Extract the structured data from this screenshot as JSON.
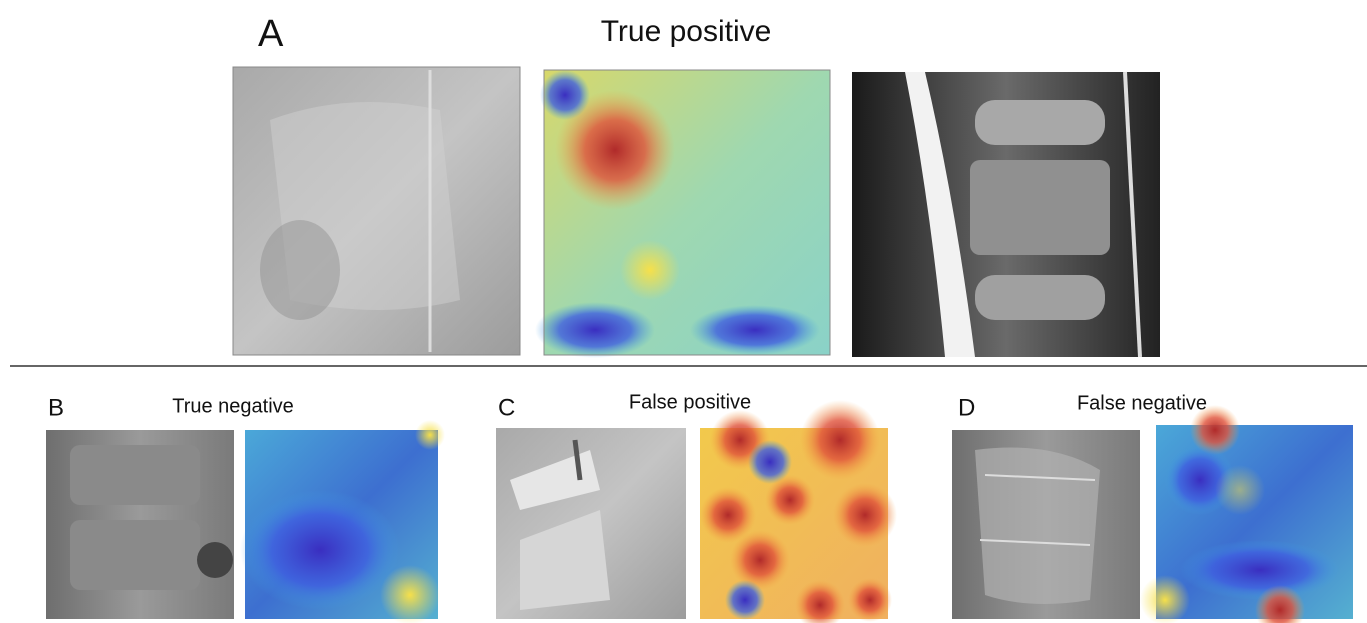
{
  "panels": [
    {
      "letter": "A",
      "title": "True positive"
    },
    {
      "letter": "B",
      "title": "True negative"
    },
    {
      "letter": "C",
      "title": "False positive"
    },
    {
      "letter": "D",
      "title": "False negative"
    }
  ]
}
